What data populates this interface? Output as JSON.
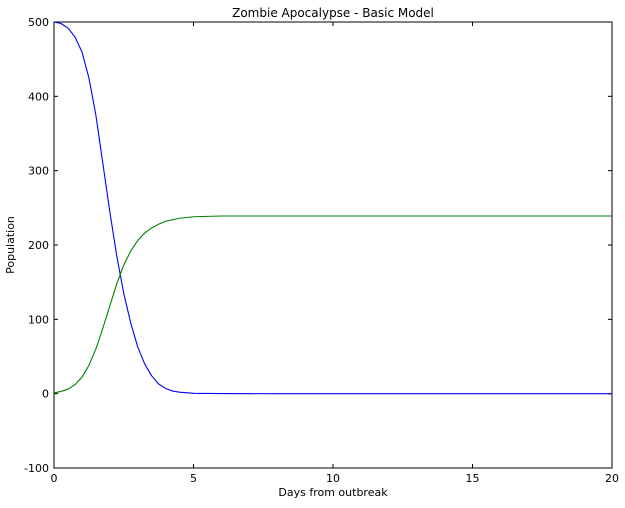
{
  "chart_data": {
    "type": "line",
    "title": "Zombie Apocalypse - Basic Model",
    "xlabel": "Days from outbreak",
    "ylabel": "Population",
    "xlim": [
      0,
      20
    ],
    "ylim": [
      -100,
      500
    ],
    "xticks": [
      0,
      5,
      10,
      15,
      20
    ],
    "yticks": [
      -100,
      0,
      100,
      200,
      300,
      400,
      500
    ],
    "grid": false,
    "legend": "none",
    "series": [
      {
        "color": "#0000ff",
        "x": [
          0,
          0.25,
          0.5,
          0.75,
          1.0,
          1.25,
          1.5,
          1.75,
          2.0,
          2.25,
          2.5,
          2.75,
          3.0,
          3.25,
          3.5,
          3.75,
          4.0,
          4.25,
          4.5,
          5.0,
          6.0,
          8.0,
          10.0,
          15.0,
          20.0
        ],
        "values": [
          500,
          498,
          492,
          480,
          460,
          425,
          375,
          310,
          245,
          185,
          135,
          95,
          63,
          40,
          24,
          13,
          7,
          3.5,
          2,
          0.5,
          0.1,
          0,
          0,
          0,
          0
        ]
      },
      {
        "color": "#008000",
        "x": [
          0,
          0.25,
          0.5,
          0.75,
          1.0,
          1.25,
          1.5,
          1.75,
          2.0,
          2.25,
          2.5,
          2.75,
          3.0,
          3.25,
          3.5,
          3.75,
          4.0,
          4.25,
          4.5,
          5.0,
          6.0,
          8.0,
          10.0,
          15.0,
          20.0
        ],
        "values": [
          1,
          3,
          6,
          12,
          22,
          38,
          60,
          88,
          118,
          148,
          173,
          192,
          206,
          216,
          223,
          228,
          232,
          234,
          236,
          238,
          239,
          239,
          239,
          239,
          239
        ]
      }
    ]
  }
}
